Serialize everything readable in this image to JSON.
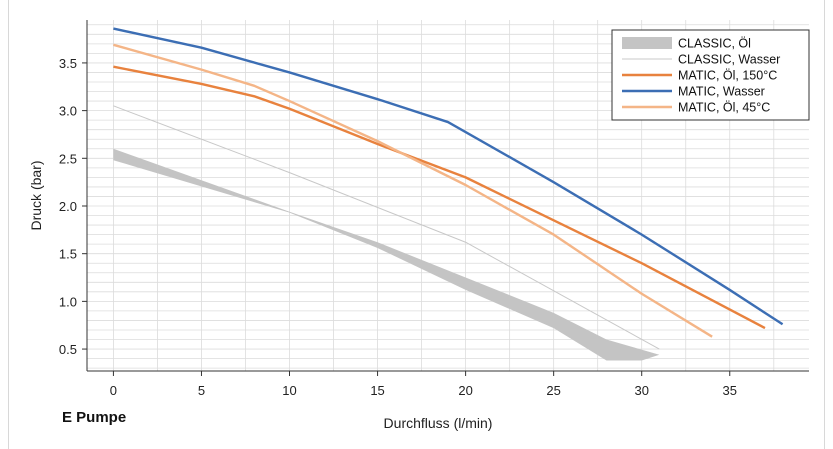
{
  "footer": {
    "pump_label": "E Pumpe"
  },
  "chart_data": {
    "type": "line",
    "title": "",
    "xlabel": "Durchfluss (l/min)",
    "ylabel": "Druck (bar)",
    "xlim": [
      -1.5,
      39.5
    ],
    "ylim": [
      0.27,
      3.95
    ],
    "xticks": [
      0,
      5,
      10,
      15,
      20,
      25,
      30,
      35
    ],
    "yticks": [
      0.5,
      1.0,
      1.5,
      2.0,
      2.5,
      3.0,
      3.5
    ],
    "ytick_labels": [
      "0.5",
      "1.0",
      "1.5",
      "2.0",
      "2.5",
      "3.0",
      "3.5"
    ],
    "minor_y_step": 0.1,
    "grid": true,
    "legend_position": "top-right",
    "series": [
      {
        "name": "CLASSIC, Öl",
        "kind": "band",
        "color": "#c4c4c4",
        "upper": [
          [
            0,
            2.6
          ],
          [
            10,
            1.94
          ],
          [
            15,
            1.62
          ],
          [
            20,
            1.25
          ],
          [
            25,
            0.88
          ],
          [
            28,
            0.6
          ],
          [
            31,
            0.44
          ]
        ],
        "lower": [
          [
            0,
            2.48
          ],
          [
            10,
            1.93
          ],
          [
            15,
            1.56
          ],
          [
            20,
            1.12
          ],
          [
            25,
            0.72
          ],
          [
            28,
            0.38
          ],
          [
            30,
            0.38
          ],
          [
            31,
            0.44
          ]
        ]
      },
      {
        "name": "CLASSIC, Wasser",
        "kind": "line",
        "color": "#c8c8c8",
        "x": [
          0,
          10,
          20,
          31
        ],
        "y": [
          3.05,
          2.35,
          1.62,
          0.5
        ]
      },
      {
        "name": "MATIC, Öl, 150°C",
        "kind": "line",
        "color": "#e8823e",
        "x": [
          0,
          5,
          8,
          10,
          15,
          20,
          25,
          30,
          37
        ],
        "y": [
          3.46,
          3.28,
          3.15,
          3.02,
          2.65,
          2.3,
          1.85,
          1.4,
          0.72
        ]
      },
      {
        "name": "MATIC, Wasser",
        "kind": "line",
        "color": "#3c6eb4",
        "x": [
          0,
          5,
          10,
          15,
          19,
          25,
          30,
          35,
          38
        ],
        "y": [
          3.86,
          3.66,
          3.4,
          3.12,
          2.88,
          2.25,
          1.7,
          1.12,
          0.76
        ]
      },
      {
        "name": "MATIC, Öl, 45°C",
        "kind": "line",
        "color": "#f4b587",
        "x": [
          0,
          5,
          8,
          10,
          15,
          20,
          25,
          30,
          34
        ],
        "y": [
          3.69,
          3.43,
          3.26,
          3.1,
          2.68,
          2.22,
          1.7,
          1.08,
          0.63
        ]
      }
    ]
  }
}
